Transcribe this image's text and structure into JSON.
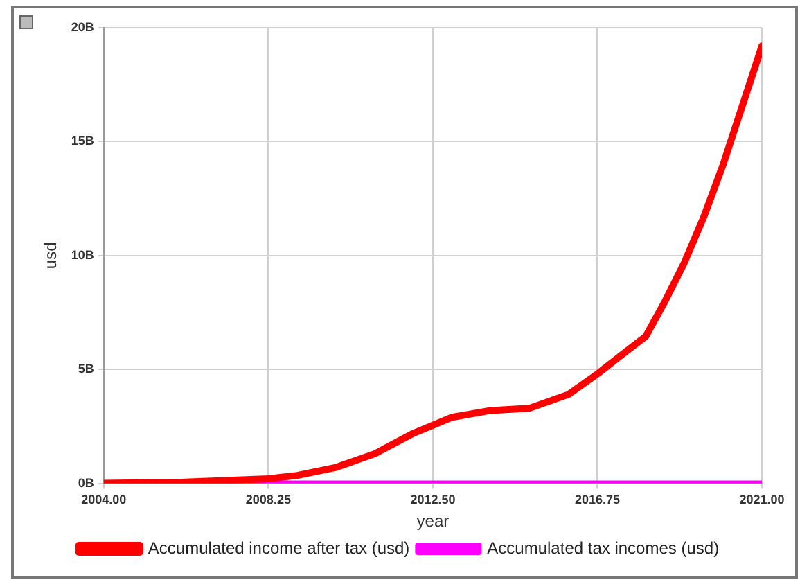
{
  "chart_data": {
    "type": "line",
    "xlabel": "year",
    "ylabel": "usd",
    "x": [
      2004,
      2006,
      2008.25,
      2009,
      2010,
      2011,
      2012,
      2013,
      2014,
      2015,
      2016,
      2016.75,
      2017.5,
      2018,
      2018.5,
      2019,
      2019.5,
      2020,
      2020.5,
      2021
    ],
    "series": [
      {
        "name": "Accumulated income after tax (usd)",
        "color": "#ff0000",
        "values": [
          0,
          0.05,
          0.2,
          0.35,
          0.7,
          1.3,
          2.2,
          2.9,
          3.2,
          3.3,
          3.9,
          4.8,
          5.8,
          6.45,
          8.0,
          9.7,
          11.7,
          14.0,
          16.6,
          19.2
        ]
      },
      {
        "name": "Accumulated tax incomes (usd)",
        "color": "#ff00ff",
        "values": [
          0,
          0,
          0,
          0,
          0,
          0,
          0,
          0,
          0,
          0,
          0,
          0,
          0,
          0,
          0,
          0,
          0,
          0,
          0,
          0
        ]
      }
    ],
    "xlim": [
      2004,
      2021
    ],
    "xticks": [
      {
        "value": 2004,
        "label": "2004.00"
      },
      {
        "value": 2008.25,
        "label": "2008.25"
      },
      {
        "value": 2012.5,
        "label": "2012.50"
      },
      {
        "value": 2016.75,
        "label": "2016.75"
      },
      {
        "value": 2021,
        "label": "2021.00"
      }
    ],
    "ylim": [
      0,
      20
    ],
    "yticks": [
      {
        "value": 0,
        "label": "0B"
      },
      {
        "value": 5,
        "label": "5B"
      },
      {
        "value": 10,
        "label": "10B"
      },
      {
        "value": 15,
        "label": "15B"
      },
      {
        "value": 20,
        "label": "20B"
      }
    ],
    "grid": true,
    "legend": "bottom",
    "marker": "none",
    "line_style": "solid"
  }
}
